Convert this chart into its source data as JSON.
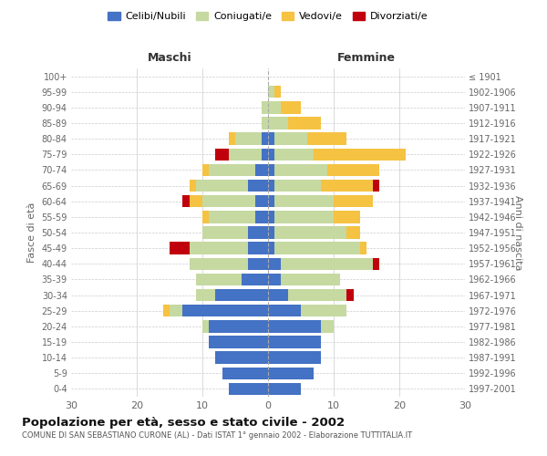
{
  "age_groups": [
    "0-4",
    "5-9",
    "10-14",
    "15-19",
    "20-24",
    "25-29",
    "30-34",
    "35-39",
    "40-44",
    "45-49",
    "50-54",
    "55-59",
    "60-64",
    "65-69",
    "70-74",
    "75-79",
    "80-84",
    "85-89",
    "90-94",
    "95-99",
    "100+"
  ],
  "birth_years": [
    "1997-2001",
    "1992-1996",
    "1987-1991",
    "1982-1986",
    "1977-1981",
    "1972-1976",
    "1967-1971",
    "1962-1966",
    "1957-1961",
    "1952-1956",
    "1947-1951",
    "1942-1946",
    "1937-1941",
    "1932-1936",
    "1927-1931",
    "1922-1926",
    "1917-1921",
    "1912-1916",
    "1907-1911",
    "1902-1906",
    "≤ 1901"
  ],
  "males": {
    "celibi": [
      6,
      7,
      8,
      9,
      9,
      13,
      8,
      4,
      3,
      3,
      3,
      2,
      2,
      3,
      2,
      1,
      1,
      0,
      0,
      0,
      0
    ],
    "coniugati": [
      0,
      0,
      0,
      0,
      1,
      2,
      3,
      7,
      9,
      9,
      7,
      7,
      8,
      8,
      7,
      5,
      4,
      1,
      1,
      0,
      0
    ],
    "vedovi": [
      0,
      0,
      0,
      0,
      0,
      1,
      0,
      0,
      0,
      0,
      0,
      1,
      2,
      1,
      1,
      0,
      1,
      0,
      0,
      0,
      0
    ],
    "divorziati": [
      0,
      0,
      0,
      0,
      0,
      0,
      0,
      0,
      0,
      3,
      0,
      0,
      1,
      0,
      0,
      2,
      0,
      0,
      0,
      0,
      0
    ]
  },
  "females": {
    "nubili": [
      5,
      7,
      8,
      8,
      8,
      5,
      3,
      2,
      2,
      1,
      1,
      1,
      1,
      1,
      1,
      1,
      1,
      0,
      0,
      0,
      0
    ],
    "coniugate": [
      0,
      0,
      0,
      0,
      2,
      7,
      9,
      9,
      14,
      13,
      11,
      9,
      9,
      7,
      8,
      6,
      5,
      3,
      2,
      1,
      0
    ],
    "vedove": [
      0,
      0,
      0,
      0,
      0,
      0,
      0,
      0,
      0,
      1,
      2,
      4,
      6,
      8,
      8,
      14,
      6,
      5,
      3,
      1,
      0
    ],
    "divorziate": [
      0,
      0,
      0,
      0,
      0,
      0,
      1,
      0,
      1,
      0,
      0,
      0,
      0,
      1,
      0,
      0,
      0,
      0,
      0,
      0,
      0
    ]
  },
  "colors": {
    "celibi_nubili": "#4472C4",
    "coniugati": "#C5D9A0",
    "vedovi": "#F5C242",
    "divorziati": "#C0000C"
  },
  "xlim": 30,
  "title": "Popolazione per età, sesso e stato civile - 2002",
  "subtitle": "COMUNE DI SAN SEBASTIANO CURONE (AL) - Dati ISTAT 1° gennaio 2002 - Elaborazione TUTTITALIA.IT",
  "xlabel_left": "Maschi",
  "xlabel_right": "Femmine",
  "ylabel_left": "Fasce di età",
  "ylabel_right": "Anni di nascita",
  "legend_labels": [
    "Celibi/Nubili",
    "Coniugati/e",
    "Vedovi/e",
    "Divorziati/e"
  ]
}
